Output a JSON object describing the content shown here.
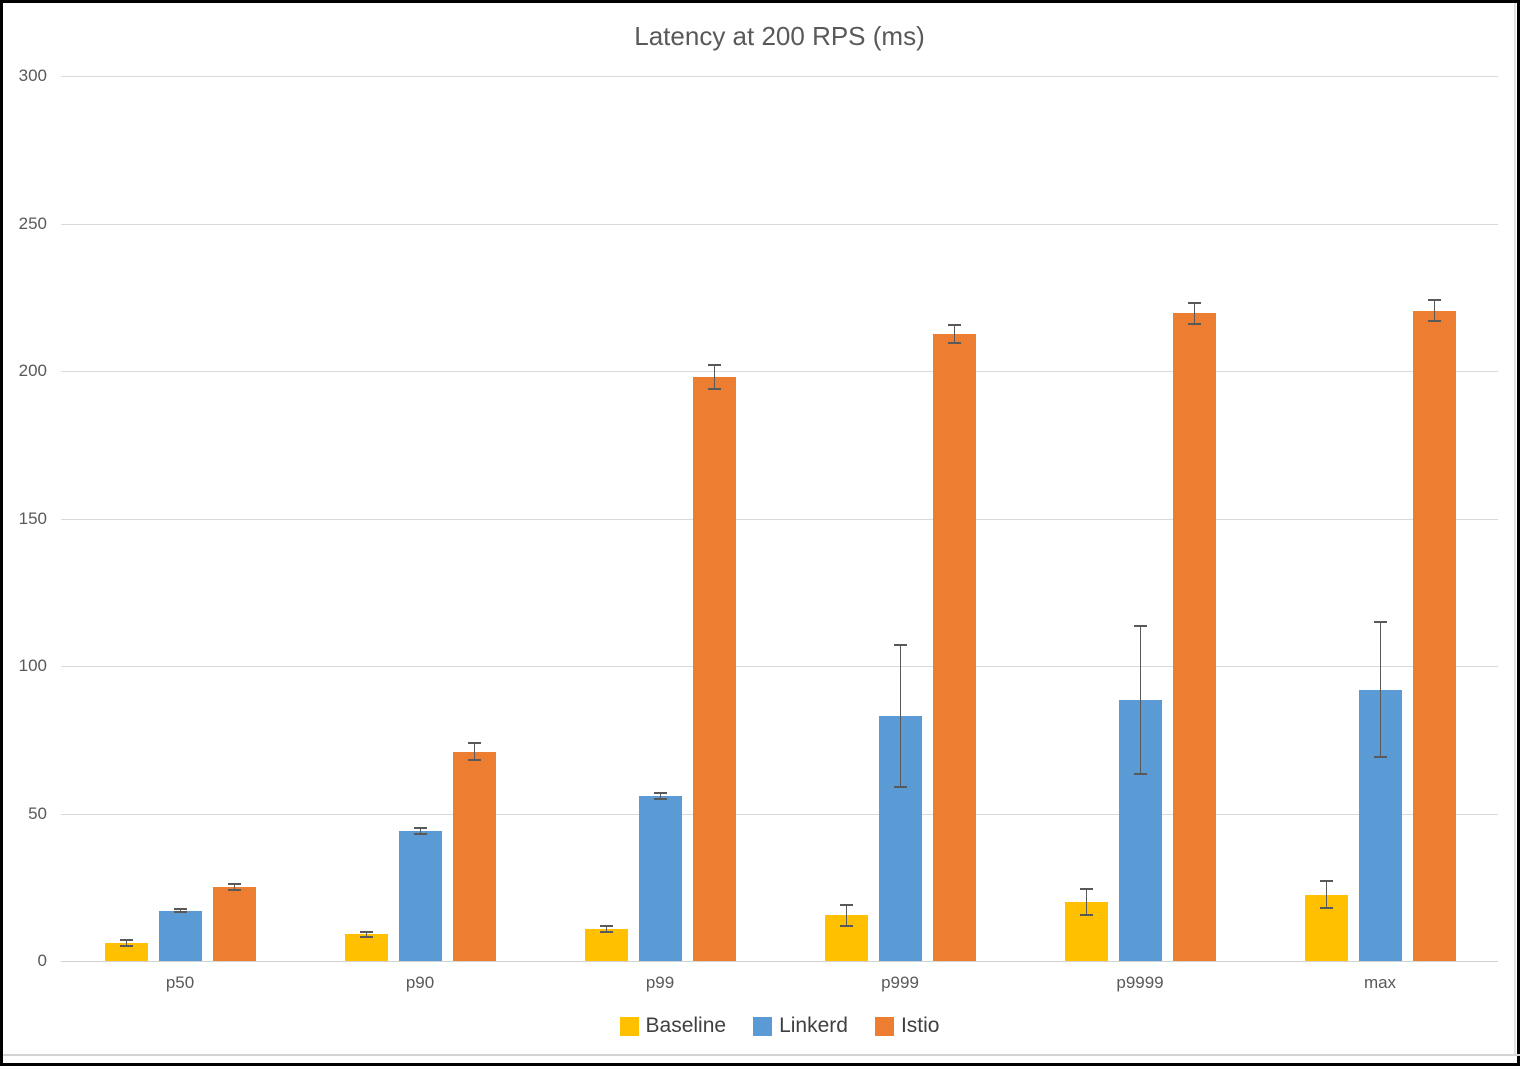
{
  "chart_data": {
    "type": "bar",
    "title": "Latency at 200 RPS (ms)",
    "categories": [
      "p50",
      "p90",
      "p99",
      "p999",
      "p9999",
      "max"
    ],
    "series": [
      {
        "name": "Baseline",
        "color": "#FFC000",
        "values": [
          6,
          9,
          11,
          15.5,
          20,
          22.5
        ],
        "errors": [
          1,
          1,
          1,
          3.5,
          4.5,
          4.5
        ]
      },
      {
        "name": "Linkerd",
        "color": "#5B9BD5",
        "values": [
          17,
          44,
          56,
          83,
          88.5,
          92
        ],
        "errors": [
          0.5,
          1,
          1,
          24,
          25,
          23
        ]
      },
      {
        "name": "Istio",
        "color": "#ED7D31",
        "values": [
          25,
          71,
          198,
          212.5,
          219.5,
          220.5
        ],
        "errors": [
          1,
          3,
          4,
          3,
          3.5,
          3.5
        ]
      }
    ],
    "ylim": [
      0,
      300
    ],
    "ytick_interval": 50,
    "yticks": [
      "0",
      "50",
      "100",
      "150",
      "200",
      "250",
      "300"
    ],
    "xlabel": "",
    "ylabel": "",
    "grid": true,
    "error_bars": true,
    "legend_position": "bottom",
    "colors": {
      "gridline": "#D9D9D9",
      "axis_line": "#D2D2D2",
      "tick_text": "#595959",
      "title_text": "#595959",
      "legend_text": "#404040",
      "error_bar": "#595959"
    }
  }
}
